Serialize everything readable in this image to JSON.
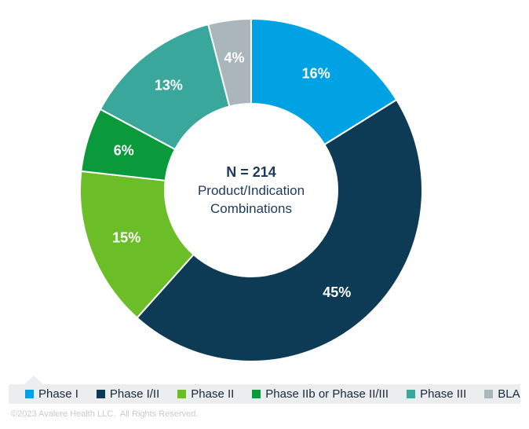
{
  "chart_data": {
    "type": "pie",
    "subtype": "donut",
    "legend_position": "bottom",
    "start_angle_deg": 0,
    "value_unit": "%",
    "label_color": "#ffffff",
    "center_label": {
      "line1": "N = 214",
      "line2": "Product/Indication",
      "line3": "Combinations"
    },
    "series": [
      {
        "label": "Phase I",
        "value": 16,
        "display": "16%",
        "color": "#00A2E4"
      },
      {
        "label": "Phase I/II",
        "value": 45,
        "display": "45%",
        "color": "#0D3A55"
      },
      {
        "label": "Phase II",
        "value": 15,
        "display": "15%",
        "color": "#6CBE28"
      },
      {
        "label": "Phase IIb or Phase II/III",
        "value": 6,
        "display": "6%",
        "color": "#0A9A3C"
      },
      {
        "label": "Phase III",
        "value": 13,
        "display": "13%",
        "color": "#39A79B"
      },
      {
        "label": "BLA",
        "value": 4,
        "display": "4%",
        "color": "#AAB6BC"
      }
    ]
  },
  "legend": {
    "background_color": "#ECEDEE",
    "text_color": "#17293A"
  },
  "footer": {
    "copyright": "©2023 Avalere Health LLC.  All Rights Reserved."
  }
}
